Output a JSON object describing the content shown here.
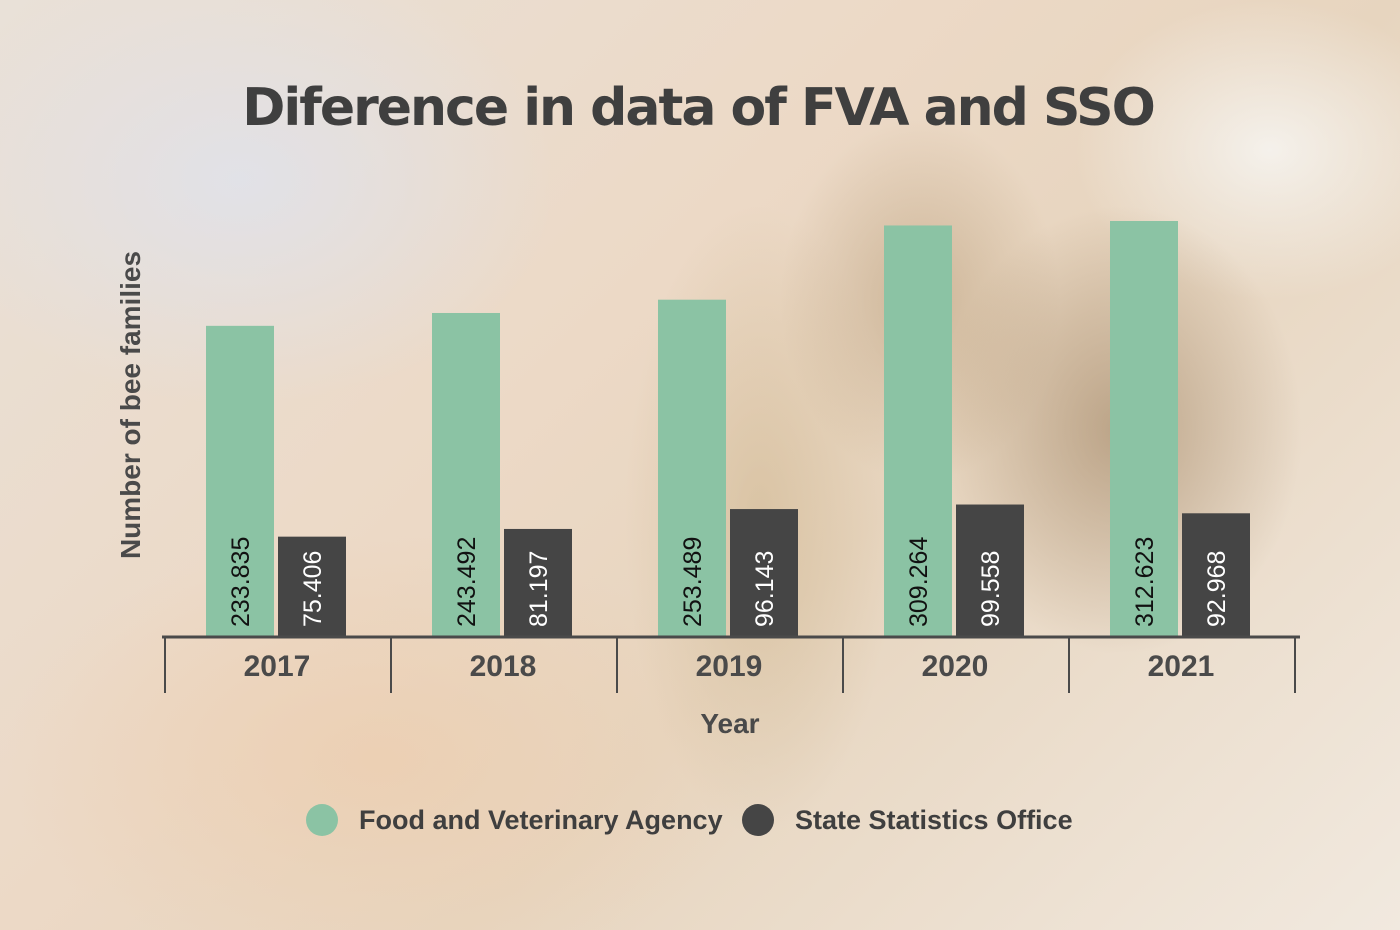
{
  "chart_data": {
    "type": "bar",
    "title": "Diference in data of FVA and SSO",
    "xlabel": "Year",
    "ylabel": "Number of bee families",
    "categories": [
      "2017",
      "2018",
      "2019",
      "2020",
      "2021"
    ],
    "series": [
      {
        "name": "Food and Veterinary Agency",
        "color": "#8bc3a4",
        "label_color": "#111111",
        "values": [
          233835,
          243492,
          253489,
          309264,
          312623
        ],
        "labels": [
          "233.835",
          "243.492",
          "253.489",
          "309.264",
          "312.623"
        ]
      },
      {
        "name": "State Statistics Office",
        "color": "#454545",
        "label_color": "#ffffff",
        "values": [
          75406,
          81197,
          96143,
          99558,
          92968
        ],
        "labels": [
          "75.406",
          "81.197",
          "96.143",
          "99.558",
          "92.968"
        ]
      }
    ],
    "ylim": [
      0,
      312623
    ],
    "grid": false,
    "legend_position": "bottom"
  }
}
